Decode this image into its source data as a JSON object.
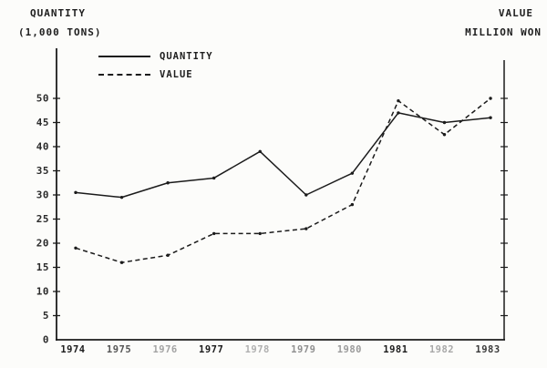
{
  "chart_data": {
    "type": "line",
    "title": "",
    "left_axis_label_line1": "QUANTITY",
    "left_axis_label_line2": "(1,000 TONS)",
    "right_axis_label_line1": "VALUE",
    "right_axis_label_line2": "MILLION WON",
    "categories": [
      "1974",
      "1975",
      "1976",
      "1977",
      "1978",
      "1979",
      "1980",
      "1981",
      "1982",
      "1983"
    ],
    "series": [
      {
        "name": "QUANTITY",
        "line_style": "solid",
        "values": [
          30.5,
          29.5,
          32.5,
          33.5,
          39,
          30,
          34.5,
          47,
          45,
          46
        ]
      },
      {
        "name": "VALUE",
        "line_style": "dashed",
        "values": [
          19,
          16,
          17.5,
          22,
          22,
          23,
          28,
          49.5,
          42.5,
          50
        ]
      }
    ],
    "y_ticks": [
      0,
      5,
      10,
      15,
      20,
      25,
      30,
      35,
      40,
      45,
      50
    ],
    "ylim": [
      0,
      60
    ],
    "xlabel": "",
    "ylabel_left": "QUANTITY (1,000 TONS)",
    "ylabel_right": "VALUE MILLION WON",
    "grid": false,
    "legend_position": "inside-top-left",
    "line_color": "#1b1b1b",
    "background_color": "#fcfcfa"
  }
}
